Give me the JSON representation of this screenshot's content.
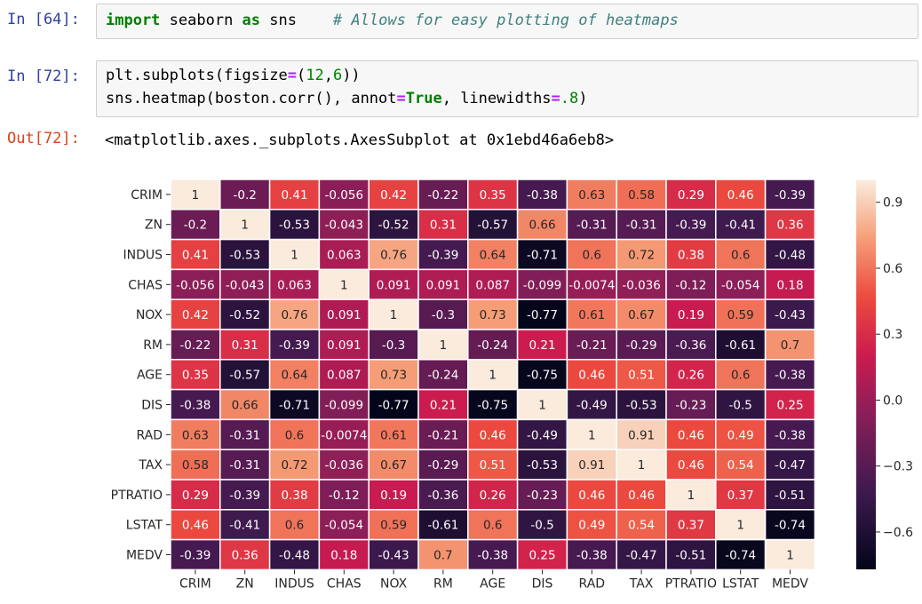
{
  "cells": {
    "c1": {
      "prompt": "In [64]:",
      "tokens": [
        {
          "t": "import",
          "c": "kw"
        },
        {
          "t": " seaborn ",
          "c": ""
        },
        {
          "t": "as",
          "c": "kw"
        },
        {
          "t": " sns    ",
          "c": ""
        },
        {
          "t": "# Allows for easy plotting of heatmaps",
          "c": "cm"
        }
      ]
    },
    "c2": {
      "prompt": "In [72]:",
      "line1": [
        {
          "t": "plt.subplots(figsize",
          "c": ""
        },
        {
          "t": "=",
          "c": "op"
        },
        {
          "t": "(",
          "c": ""
        },
        {
          "t": "12",
          "c": "num"
        },
        {
          "t": ",",
          "c": ""
        },
        {
          "t": "6",
          "c": "num"
        },
        {
          "t": "))",
          "c": ""
        }
      ],
      "line2": [
        {
          "t": "sns.heatmap(boston.corr(), annot",
          "c": ""
        },
        {
          "t": "=",
          "c": "op"
        },
        {
          "t": "True",
          "c": "kw"
        },
        {
          "t": ", linewidths",
          "c": ""
        },
        {
          "t": "=",
          "c": "op"
        },
        {
          "t": ".8",
          "c": "num"
        },
        {
          "t": ")",
          "c": ""
        }
      ]
    },
    "out": {
      "prompt": "Out[72]:",
      "text": "<matplotlib.axes._subplots.AxesSubplot at 0x1ebd46a6eb8>"
    }
  },
  "chart_data": {
    "type": "heatmap",
    "rows": [
      "CRIM",
      "ZN",
      "INDUS",
      "CHAS",
      "NOX",
      "RM",
      "AGE",
      "DIS",
      "RAD",
      "TAX",
      "PTRATIO",
      "LSTAT",
      "MEDV"
    ],
    "cols": [
      "CRIM",
      "ZN",
      "INDUS",
      "CHAS",
      "NOX",
      "RM",
      "AGE",
      "DIS",
      "RAD",
      "TAX",
      "PTRATIO",
      "LSTAT",
      "MEDV"
    ],
    "values": [
      [
        1,
        -0.2,
        0.41,
        -0.056,
        0.42,
        -0.22,
        0.35,
        -0.38,
        0.63,
        0.58,
        0.29,
        0.46,
        -0.39
      ],
      [
        -0.2,
        1,
        -0.53,
        -0.043,
        -0.52,
        0.31,
        -0.57,
        0.66,
        -0.31,
        -0.31,
        -0.39,
        -0.41,
        0.36
      ],
      [
        0.41,
        -0.53,
        1,
        0.063,
        0.76,
        -0.39,
        0.64,
        -0.71,
        0.6,
        0.72,
        0.38,
        0.6,
        -0.48
      ],
      [
        -0.056,
        -0.043,
        0.063,
        1,
        0.091,
        0.091,
        0.087,
        -0.099,
        -0.0074,
        -0.036,
        -0.12,
        -0.054,
        0.18
      ],
      [
        0.42,
        -0.52,
        0.76,
        0.091,
        1,
        -0.3,
        0.73,
        -0.77,
        0.61,
        0.67,
        0.19,
        0.59,
        -0.43
      ],
      [
        -0.22,
        0.31,
        -0.39,
        0.091,
        -0.3,
        1,
        -0.24,
        0.21,
        -0.21,
        -0.29,
        -0.36,
        -0.61,
        0.7
      ],
      [
        0.35,
        -0.57,
        0.64,
        0.087,
        0.73,
        -0.24,
        1,
        -0.75,
        0.46,
        0.51,
        0.26,
        0.6,
        -0.38
      ],
      [
        -0.38,
        0.66,
        -0.71,
        -0.099,
        -0.77,
        0.21,
        -0.75,
        1,
        -0.49,
        -0.53,
        -0.23,
        -0.5,
        0.25
      ],
      [
        0.63,
        -0.31,
        0.6,
        -0.0074,
        0.61,
        -0.21,
        0.46,
        -0.49,
        1,
        0.91,
        0.46,
        0.49,
        -0.38
      ],
      [
        0.58,
        -0.31,
        0.72,
        -0.036,
        0.67,
        -0.29,
        0.51,
        -0.53,
        0.91,
        1,
        0.46,
        0.54,
        -0.47
      ],
      [
        0.29,
        -0.39,
        0.38,
        -0.12,
        0.19,
        -0.36,
        0.26,
        -0.23,
        0.46,
        0.46,
        1,
        0.37,
        -0.51
      ],
      [
        0.46,
        -0.41,
        0.6,
        -0.054,
        0.59,
        -0.61,
        0.6,
        -0.5,
        0.49,
        0.54,
        0.37,
        1,
        -0.74
      ],
      [
        -0.39,
        0.36,
        -0.48,
        0.18,
        -0.43,
        0.7,
        -0.38,
        0.25,
        -0.38,
        -0.47,
        -0.51,
        -0.74,
        1
      ]
    ],
    "labels": [
      [
        "1",
        "-0.2",
        "0.41",
        "-0.056",
        "0.42",
        "-0.22",
        "0.35",
        "-0.38",
        "0.63",
        "0.58",
        "0.29",
        "0.46",
        "-0.39"
      ],
      [
        "-0.2",
        "1",
        "-0.53",
        "-0.043",
        "-0.52",
        "0.31",
        "-0.57",
        "0.66",
        "-0.31",
        "-0.31",
        "-0.39",
        "-0.41",
        "0.36"
      ],
      [
        "0.41",
        "-0.53",
        "1",
        "0.063",
        "0.76",
        "-0.39",
        "0.64",
        "-0.71",
        "0.6",
        "0.72",
        "0.38",
        "0.6",
        "-0.48"
      ],
      [
        "-0.056",
        "-0.043",
        "0.063",
        "1",
        "0.091",
        "0.091",
        "0.087",
        "-0.099",
        "-0.0074",
        "-0.036",
        "-0.12",
        "-0.054",
        "0.18"
      ],
      [
        "0.42",
        "-0.52",
        "0.76",
        "0.091",
        "1",
        "-0.3",
        "0.73",
        "-0.77",
        "0.61",
        "0.67",
        "0.19",
        "0.59",
        "-0.43"
      ],
      [
        "-0.22",
        "0.31",
        "-0.39",
        "0.091",
        "-0.3",
        "1",
        "-0.24",
        "0.21",
        "-0.21",
        "-0.29",
        "-0.36",
        "-0.61",
        "0.7"
      ],
      [
        "0.35",
        "-0.57",
        "0.64",
        "0.087",
        "0.73",
        "-0.24",
        "1",
        "-0.75",
        "0.46",
        "0.51",
        "0.26",
        "0.6",
        "-0.38"
      ],
      [
        "-0.38",
        "0.66",
        "-0.71",
        "-0.099",
        "-0.77",
        "0.21",
        "-0.75",
        "1",
        "-0.49",
        "-0.53",
        "-0.23",
        "-0.5",
        "0.25"
      ],
      [
        "0.63",
        "-0.31",
        "0.6",
        "-0.0074",
        "0.61",
        "-0.21",
        "0.46",
        "-0.49",
        "1",
        "0.91",
        "0.46",
        "0.49",
        "-0.38"
      ],
      [
        "0.58",
        "-0.31",
        "0.72",
        "-0.036",
        "0.67",
        "-0.29",
        "0.51",
        "-0.53",
        "0.91",
        "1",
        "0.46",
        "0.54",
        "-0.47"
      ],
      [
        "0.29",
        "-0.39",
        "0.38",
        "-0.12",
        "0.19",
        "-0.36",
        "0.26",
        "-0.23",
        "0.46",
        "0.46",
        "1",
        "0.37",
        "-0.51"
      ],
      [
        "0.46",
        "-0.41",
        "0.6",
        "-0.054",
        "0.59",
        "-0.61",
        "0.6",
        "-0.5",
        "0.49",
        "0.54",
        "0.37",
        "1",
        "-0.74"
      ],
      [
        "-0.39",
        "0.36",
        "-0.48",
        "0.18",
        "-0.43",
        "0.7",
        "-0.38",
        "0.25",
        "-0.38",
        "-0.47",
        "-0.51",
        "-0.74",
        "1"
      ]
    ],
    "colorbar": {
      "vmin": -0.77,
      "vmax": 1,
      "ticks": [
        0.9,
        0.6,
        0.3,
        0.0,
        -0.3,
        -0.6
      ],
      "tick_labels": [
        "0.9",
        "0.6",
        "0.3",
        "0.0",
        "−0.3",
        "−0.6"
      ]
    },
    "colormap": "rocket",
    "grid_line_color": "#ffffff"
  }
}
